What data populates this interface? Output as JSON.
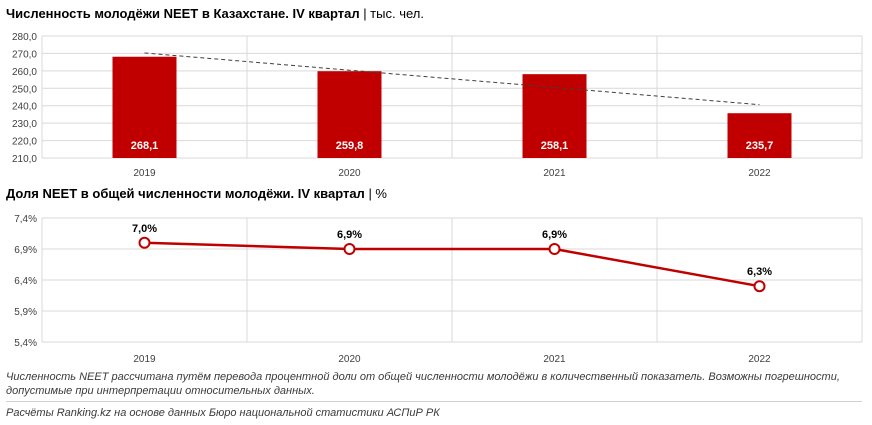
{
  "title1": {
    "main": "Численность молодёжи NEET в Казахстане. IV квартал",
    "unit": " | тыс. чел."
  },
  "title2": {
    "main": "Доля NEET в общей численности молодёжи. IV квартал",
    "unit": " | %"
  },
  "notes": {
    "note1": "Численность NEET рассчитана путём перевода процентной доли от общей численности молодёжи в количественный показатель. Возможны погрешности, допустимые при интерпретации относительных данных.",
    "note2": "Расчёты Ranking.kz на основе данных Бюро национальной статистики АСПиР РК"
  },
  "colors": {
    "bar": "#c00000",
    "line": "#c00000",
    "grid": "#d9d9d9",
    "trend": "#404040"
  },
  "chart_data": [
    {
      "type": "bar",
      "categories": [
        "2019",
        "2020",
        "2021",
        "2022"
      ],
      "values": [
        268.1,
        259.8,
        258.1,
        235.7
      ],
      "value_labels": [
        "268,1",
        "259,8",
        "258,1",
        "235,7"
      ],
      "ylim": [
        210,
        280
      ],
      "yticks": [
        210,
        220,
        230,
        240,
        250,
        260,
        270,
        280
      ],
      "ytick_labels": [
        "210,0",
        "220,0",
        "230,0",
        "240,0",
        "250,0",
        "260,0",
        "270,0",
        "280,0"
      ],
      "trendline": "linear dashed",
      "grid": true
    },
    {
      "type": "line",
      "categories": [
        "2019",
        "2020",
        "2021",
        "2022"
      ],
      "values": [
        7.0,
        6.9,
        6.9,
        6.3
      ],
      "value_labels": [
        "7,0%",
        "6,9%",
        "6,9%",
        "6,3%"
      ],
      "ylim": [
        5.4,
        7.4
      ],
      "yticks": [
        5.4,
        5.9,
        6.4,
        6.9,
        7.4
      ],
      "ytick_labels": [
        "5,4%",
        "5,9%",
        "6,4%",
        "6,9%",
        "7,4%"
      ],
      "grid": true
    }
  ]
}
